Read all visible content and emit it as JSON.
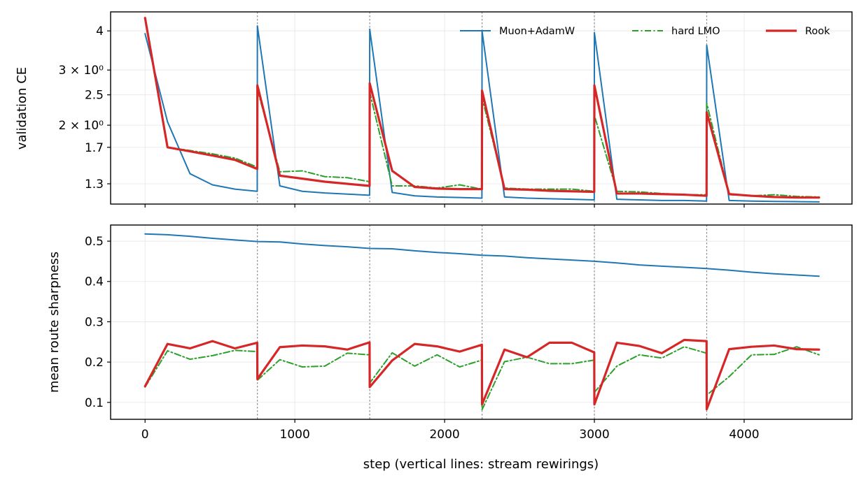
{
  "chart_data": [
    {
      "type": "line",
      "ylabel": "validation CE",
      "yscale": "log",
      "ylim": [
        1.12,
        4.6
      ],
      "xlim": [
        -230,
        4720
      ],
      "yticks": [
        {
          "v": 4,
          "label": "4"
        },
        {
          "v": 3,
          "label": "3 × 10⁰"
        },
        {
          "v": 2.5,
          "label": "2.5"
        },
        {
          "v": 2,
          "label": "2 × 10⁰"
        },
        {
          "v": 1.7,
          "label": "1.7"
        },
        {
          "v": 1.3,
          "label": "1.3"
        }
      ],
      "grid": true,
      "legend": {
        "placement": "top-right",
        "orientation": "horizontal"
      },
      "series": [
        {
          "name": "Muon+AdamW",
          "color": "#1f77b4",
          "style": "solid",
          "points": [
            [
              0,
              3.92
            ],
            [
              150,
              2.05
            ],
            [
              300,
              1.4
            ],
            [
              450,
              1.29
            ],
            [
              600,
              1.25
            ],
            [
              749,
              1.23
            ],
            [
              750,
              4.15
            ],
            [
              900,
              1.28
            ],
            [
              1050,
              1.23
            ],
            [
              1200,
              1.215
            ],
            [
              1350,
              1.205
            ],
            [
              1499,
              1.195
            ],
            [
              1500,
              4.05
            ],
            [
              1650,
              1.22
            ],
            [
              1800,
              1.19
            ],
            [
              1950,
              1.18
            ],
            [
              2100,
              1.175
            ],
            [
              2249,
              1.17
            ],
            [
              2250,
              4.0
            ],
            [
              2400,
              1.18
            ],
            [
              2550,
              1.17
            ],
            [
              2700,
              1.165
            ],
            [
              2850,
              1.16
            ],
            [
              2999,
              1.155
            ],
            [
              3000,
              3.95
            ],
            [
              3150,
              1.16
            ],
            [
              3300,
              1.155
            ],
            [
              3450,
              1.15
            ],
            [
              3600,
              1.15
            ],
            [
              3749,
              1.145
            ],
            [
              3750,
              3.6
            ],
            [
              3900,
              1.15
            ],
            [
              4050,
              1.145
            ],
            [
              4200,
              1.142
            ],
            [
              4350,
              1.14
            ],
            [
              4500,
              1.138
            ]
          ]
        },
        {
          "name": "hard LMO",
          "color": "#2ca02c",
          "style": "dashdot",
          "points": [
            [
              0,
              4.4
            ],
            [
              150,
              1.7
            ],
            [
              300,
              1.66
            ],
            [
              450,
              1.62
            ],
            [
              600,
              1.57
            ],
            [
              749,
              1.47
            ],
            [
              750,
              2.6
            ],
            [
              900,
              1.42
            ],
            [
              1050,
              1.43
            ],
            [
              1200,
              1.37
            ],
            [
              1350,
              1.36
            ],
            [
              1499,
              1.32
            ],
            [
              1500,
              2.55
            ],
            [
              1650,
              1.28
            ],
            [
              1800,
              1.28
            ],
            [
              1950,
              1.26
            ],
            [
              2100,
              1.29
            ],
            [
              2249,
              1.25
            ],
            [
              2250,
              2.45
            ],
            [
              2400,
              1.26
            ],
            [
              2550,
              1.25
            ],
            [
              2700,
              1.25
            ],
            [
              2850,
              1.25
            ],
            [
              2999,
              1.23
            ],
            [
              3000,
              2.15
            ],
            [
              3150,
              1.23
            ],
            [
              3300,
              1.225
            ],
            [
              3450,
              1.21
            ],
            [
              3600,
              1.2
            ],
            [
              3749,
              1.2
            ],
            [
              3750,
              2.35
            ],
            [
              3900,
              1.2
            ],
            [
              4050,
              1.19
            ],
            [
              4200,
              1.2
            ],
            [
              4350,
              1.185
            ],
            [
              4500,
              1.18
            ]
          ]
        },
        {
          "name": "Rook",
          "color": "#d62728",
          "style": "solid-thick",
          "points": [
            [
              0,
              4.4
            ],
            [
              150,
              1.7
            ],
            [
              300,
              1.65
            ],
            [
              450,
              1.6
            ],
            [
              600,
              1.55
            ],
            [
              749,
              1.45
            ],
            [
              750,
              2.68
            ],
            [
              900,
              1.38
            ],
            [
              1050,
              1.35
            ],
            [
              1200,
              1.32
            ],
            [
              1350,
              1.3
            ],
            [
              1499,
              1.28
            ],
            [
              1500,
              2.72
            ],
            [
              1650,
              1.43
            ],
            [
              1800,
              1.27
            ],
            [
              1950,
              1.255
            ],
            [
              2100,
              1.25
            ],
            [
              2249,
              1.25
            ],
            [
              2250,
              2.58
            ],
            [
              2400,
              1.25
            ],
            [
              2550,
              1.245
            ],
            [
              2700,
              1.235
            ],
            [
              2850,
              1.23
            ],
            [
              2999,
              1.225
            ],
            [
              3000,
              2.68
            ],
            [
              3150,
              1.21
            ],
            [
              3300,
              1.21
            ],
            [
              3450,
              1.205
            ],
            [
              3600,
              1.2
            ],
            [
              3749,
              1.19
            ],
            [
              3750,
              2.2
            ],
            [
              3900,
              1.205
            ],
            [
              4050,
              1.19
            ],
            [
              4200,
              1.18
            ],
            [
              4350,
              1.175
            ],
            [
              4500,
              1.175
            ]
          ]
        }
      ]
    },
    {
      "type": "line",
      "ylabel": "mean route sharpness",
      "yscale": "linear",
      "ylim": [
        0.058,
        0.54
      ],
      "xlim": [
        -230,
        4720
      ],
      "yticks": [
        {
          "v": 0.1,
          "label": "0.1"
        },
        {
          "v": 0.2,
          "label": "0.2"
        },
        {
          "v": 0.3,
          "label": "0.3"
        },
        {
          "v": 0.4,
          "label": "0.4"
        },
        {
          "v": 0.5,
          "label": "0.5"
        }
      ],
      "xticks": [
        {
          "v": 0,
          "label": "0"
        },
        {
          "v": 1000,
          "label": "1000"
        },
        {
          "v": 2000,
          "label": "2000"
        },
        {
          "v": 3000,
          "label": "3000"
        },
        {
          "v": 4000,
          "label": "4000"
        }
      ],
      "xlabel": "step (vertical lines: stream rewirings)",
      "grid": true,
      "series": [
        {
          "name": "Muon+AdamW",
          "color": "#1f77b4",
          "style": "solid",
          "points": [
            [
              0,
              0.518
            ],
            [
              150,
              0.516
            ],
            [
              300,
              0.512
            ],
            [
              450,
              0.507
            ],
            [
              600,
              0.503
            ],
            [
              750,
              0.499
            ],
            [
              900,
              0.498
            ],
            [
              1050,
              0.493
            ],
            [
              1200,
              0.489
            ],
            [
              1350,
              0.486
            ],
            [
              1500,
              0.482
            ],
            [
              1650,
              0.481
            ],
            [
              1800,
              0.476
            ],
            [
              1950,
              0.472
            ],
            [
              2100,
              0.469
            ],
            [
              2250,
              0.465
            ],
            [
              2400,
              0.463
            ],
            [
              2550,
              0.459
            ],
            [
              2700,
              0.456
            ],
            [
              2850,
              0.453
            ],
            [
              3000,
              0.45
            ],
            [
              3150,
              0.446
            ],
            [
              3300,
              0.441
            ],
            [
              3450,
              0.438
            ],
            [
              3600,
              0.435
            ],
            [
              3750,
              0.432
            ],
            [
              3900,
              0.428
            ],
            [
              4050,
              0.423
            ],
            [
              4200,
              0.419
            ],
            [
              4350,
              0.416
            ],
            [
              4500,
              0.413
            ]
          ]
        },
        {
          "name": "hard LMO",
          "color": "#2ca02c",
          "style": "dashdot",
          "points": [
            [
              0,
              0.138
            ],
            [
              150,
              0.228
            ],
            [
              300,
              0.207
            ],
            [
              450,
              0.216
            ],
            [
              600,
              0.229
            ],
            [
              749,
              0.226
            ],
            [
              750,
              0.155
            ],
            [
              900,
              0.206
            ],
            [
              1050,
              0.188
            ],
            [
              1200,
              0.19
            ],
            [
              1350,
              0.222
            ],
            [
              1499,
              0.218
            ],
            [
              1500,
              0.148
            ],
            [
              1650,
              0.223
            ],
            [
              1800,
              0.19
            ],
            [
              1950,
              0.218
            ],
            [
              2100,
              0.188
            ],
            [
              2249,
              0.205
            ],
            [
              2250,
              0.082
            ],
            [
              2400,
              0.201
            ],
            [
              2550,
              0.212
            ],
            [
              2700,
              0.196
            ],
            [
              2850,
              0.196
            ],
            [
              2999,
              0.205
            ],
            [
              3000,
              0.125
            ],
            [
              3150,
              0.19
            ],
            [
              3300,
              0.218
            ],
            [
              3450,
              0.21
            ],
            [
              3600,
              0.238
            ],
            [
              3749,
              0.222
            ],
            [
              3750,
              0.118
            ],
            [
              3900,
              0.164
            ],
            [
              4050,
              0.218
            ],
            [
              4200,
              0.219
            ],
            [
              4350,
              0.238
            ],
            [
              4500,
              0.218
            ]
          ]
        },
        {
          "name": "Rook",
          "color": "#d62728",
          "style": "solid-thick",
          "points": [
            [
              0,
              0.14
            ],
            [
              150,
              0.245
            ],
            [
              300,
              0.234
            ],
            [
              450,
              0.252
            ],
            [
              600,
              0.234
            ],
            [
              749,
              0.248
            ],
            [
              750,
              0.158
            ],
            [
              900,
              0.237
            ],
            [
              1050,
              0.241
            ],
            [
              1200,
              0.239
            ],
            [
              1350,
              0.231
            ],
            [
              1499,
              0.249
            ],
            [
              1500,
              0.138
            ],
            [
              1650,
              0.204
            ],
            [
              1800,
              0.245
            ],
            [
              1950,
              0.239
            ],
            [
              2100,
              0.226
            ],
            [
              2249,
              0.243
            ],
            [
              2250,
              0.095
            ],
            [
              2400,
              0.231
            ],
            [
              2550,
              0.212
            ],
            [
              2700,
              0.248
            ],
            [
              2850,
              0.248
            ],
            [
              2999,
              0.224
            ],
            [
              3000,
              0.095
            ],
            [
              3150,
              0.248
            ],
            [
              3300,
              0.24
            ],
            [
              3450,
              0.222
            ],
            [
              3600,
              0.255
            ],
            [
              3749,
              0.252
            ],
            [
              3750,
              0.083
            ],
            [
              3900,
              0.232
            ],
            [
              4050,
              0.238
            ],
            [
              4200,
              0.241
            ],
            [
              4350,
              0.232
            ],
            [
              4500,
              0.231
            ]
          ]
        }
      ]
    }
  ],
  "rewiring_steps": [
    750,
    1500,
    2250,
    3000,
    3750
  ]
}
